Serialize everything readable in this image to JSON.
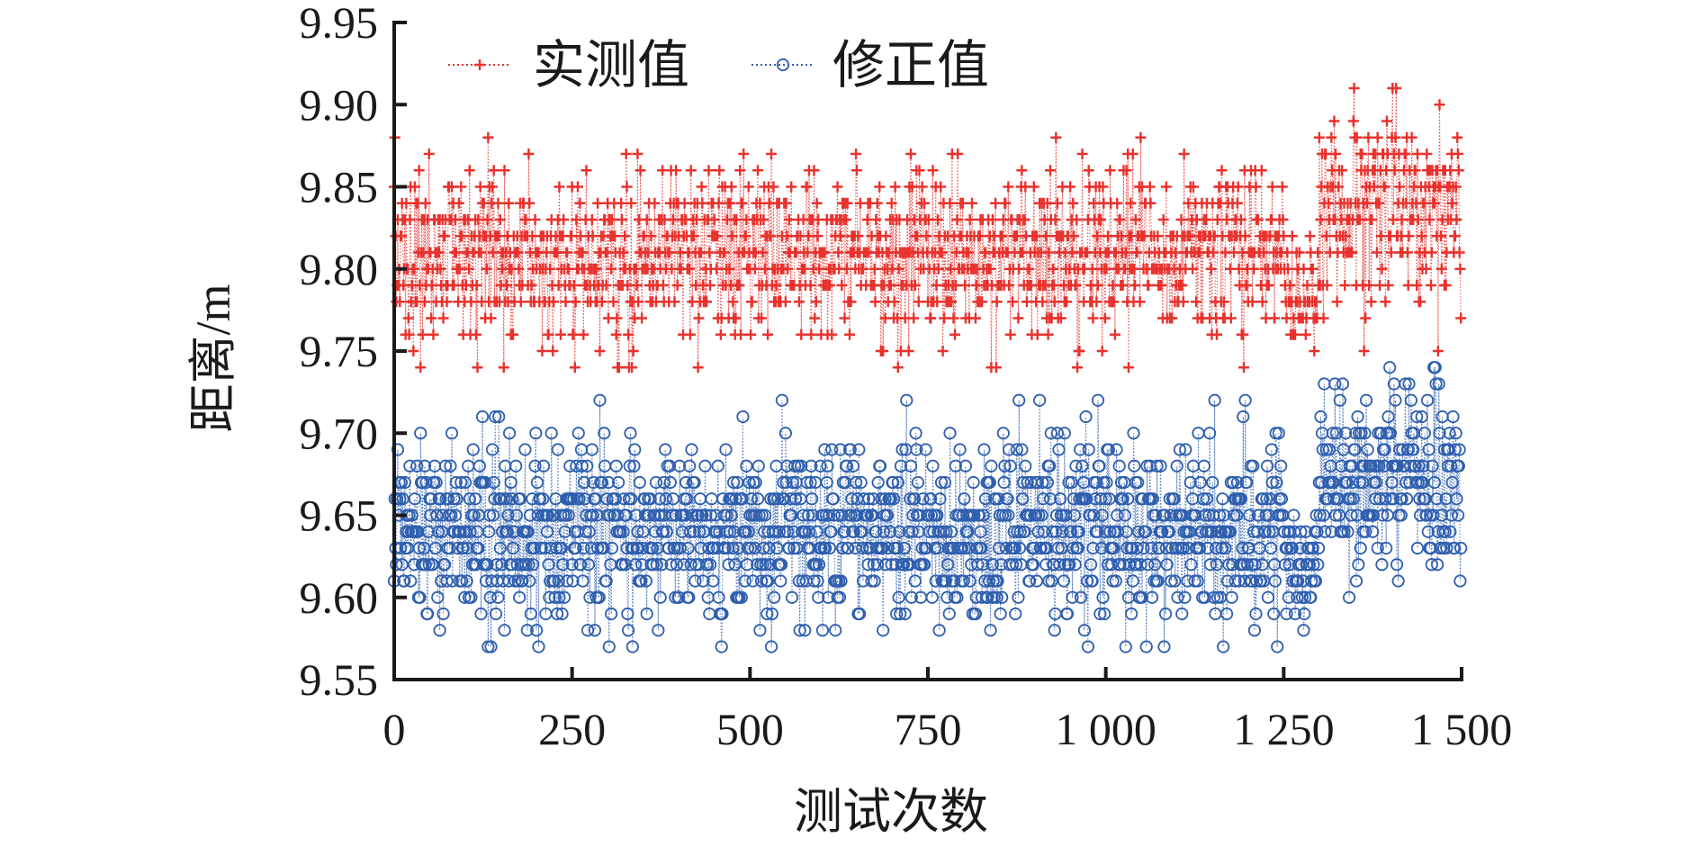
{
  "chart_data": {
    "type": "line",
    "xlabel": "测试次数",
    "ylabel": "距离/m",
    "xlim": [
      0,
      1500
    ],
    "ylim": [
      9.55,
      9.95
    ],
    "xticks": [
      0,
      250,
      500,
      750,
      1000,
      1250,
      1500
    ],
    "xtick_labels": [
      "0",
      "250",
      "500",
      "750",
      "1 000",
      "1 250",
      "1 500"
    ],
    "yticks": [
      9.55,
      9.6,
      9.65,
      9.7,
      9.75,
      9.8,
      9.85,
      9.9,
      9.95
    ],
    "ytick_labels": [
      "9.55",
      "9.60",
      "9.65",
      "9.70",
      "9.75",
      "9.80",
      "9.85",
      "9.90",
      "9.95"
    ],
    "legend_position": "top-left",
    "grid": false,
    "n_points": 1500,
    "series": [
      {
        "name": "实测值",
        "color": "#e8322e",
        "marker": "plus",
        "line_style": "dotted",
        "mean": 9.81,
        "range": [
          9.74,
          9.91
        ],
        "segments": [
          {
            "x": [
              0,
              1250
            ],
            "mean": 9.81,
            "min": 9.74,
            "max": 9.88
          },
          {
            "x": [
              1250,
              1300
            ],
            "mean": 9.79,
            "min": 9.74,
            "max": 9.84
          },
          {
            "x": [
              1300,
              1500
            ],
            "mean": 9.84,
            "min": 9.75,
            "max": 9.91
          }
        ]
      },
      {
        "name": "修正值",
        "color": "#2f5faf",
        "marker": "circle",
        "line_style": "dotted",
        "mean": 9.64,
        "range": [
          9.57,
          9.74
        ],
        "segments": [
          {
            "x": [
              0,
              1250
            ],
            "mean": 9.64,
            "min": 9.57,
            "max": 9.72
          },
          {
            "x": [
              1250,
              1300
            ],
            "mean": 9.62,
            "min": 9.57,
            "max": 9.67
          },
          {
            "x": [
              1300,
              1500
            ],
            "mean": 9.67,
            "min": 9.58,
            "max": 9.74
          }
        ]
      }
    ]
  }
}
